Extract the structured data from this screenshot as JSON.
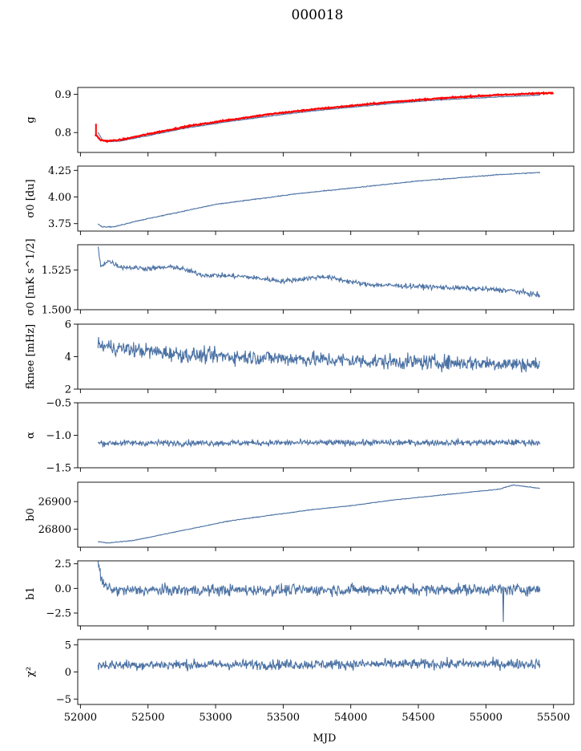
{
  "chart_data": {
    "type": "line",
    "title": "000018",
    "xlabel": "MJD",
    "xlim": [
      51980,
      55650
    ],
    "x_ticks": [
      "52000",
      "52500",
      "53000",
      "53500",
      "54000",
      "54500",
      "55000",
      "55500"
    ],
    "x_tick_values": [
      52000,
      52500,
      53000,
      53500,
      54000,
      54500,
      55000,
      55500
    ],
    "x_start": 52130,
    "x_end": 55400,
    "series_color": "#4c72a4",
    "overlay_color": "#ff0000",
    "panels": [
      {
        "id": "g",
        "ylabel": "g",
        "ylim": [
          0.748,
          0.918
        ],
        "y_ticks": [
          "0.9",
          "0.8"
        ],
        "y_tick_values": [
          0.9,
          0.8
        ],
        "series": {
          "x": [
            52130,
            52160,
            52200,
            52300,
            52500,
            52800,
            53100,
            53400,
            53700,
            54000,
            54300,
            54600,
            54900,
            55200,
            55400
          ],
          "values": [
            0.8,
            0.782,
            0.776,
            0.778,
            0.792,
            0.813,
            0.829,
            0.843,
            0.856,
            0.866,
            0.876,
            0.884,
            0.89,
            0.895,
            0.898
          ],
          "noise": 0.001
        },
        "overlay": {
          "x": [
            52110,
            52150,
            52200,
            52300,
            52500,
            52800,
            53100,
            53400,
            53700,
            54000,
            54300,
            54600,
            54900,
            55200,
            55500
          ],
          "values": [
            0.795,
            0.78,
            0.778,
            0.781,
            0.796,
            0.817,
            0.833,
            0.848,
            0.86,
            0.87,
            0.88,
            0.888,
            0.895,
            0.9,
            0.904
          ],
          "noise": 0.0015,
          "spike": {
            "x": 52115,
            "low": 0.79,
            "high": 0.823
          }
        }
      },
      {
        "id": "sigma0-du",
        "ylabel": "σ0 [du]",
        "ylim": [
          3.68,
          4.29
        ],
        "y_ticks": [
          "4.25",
          "4.00",
          "3.75"
        ],
        "y_tick_values": [
          4.25,
          4.0,
          3.75
        ],
        "series": {
          "x": [
            52130,
            52160,
            52250,
            52400,
            52700,
            53000,
            53300,
            53600,
            53900,
            54200,
            54500,
            54800,
            55100,
            55400
          ],
          "values": [
            3.75,
            3.72,
            3.72,
            3.77,
            3.85,
            3.93,
            3.98,
            4.03,
            4.07,
            4.11,
            4.15,
            4.18,
            4.21,
            4.23
          ],
          "noise": 0.004
        }
      },
      {
        "id": "sigma0-mks",
        "ylabel": "σ0 [mK s^1/2]",
        "ylim": [
          1.5,
          1.541
        ],
        "y_ticks": [
          "1.525",
          "1.500"
        ],
        "y_tick_values": [
          1.525,
          1.5
        ],
        "series": {
          "x": [
            52130,
            52150,
            52200,
            52300,
            52500,
            52700,
            52900,
            53200,
            53500,
            53800,
            54100,
            54400,
            54700,
            55000,
            55200,
            55400
          ],
          "values": [
            1.54,
            1.527,
            1.531,
            1.527,
            1.526,
            1.527,
            1.522,
            1.521,
            1.518,
            1.521,
            1.516,
            1.515,
            1.514,
            1.513,
            1.512,
            1.509
          ],
          "noise": 0.0015
        }
      },
      {
        "id": "fknee",
        "ylabel": "fknee [mHz]",
        "ylim": [
          2,
          6
        ],
        "y_ticks": [
          "6",
          "4",
          "2"
        ],
        "y_tick_values": [
          6,
          4,
          2
        ],
        "series": {
          "x": [
            52130,
            52300,
            52800,
            53500,
            54200,
            55000,
            55400
          ],
          "values": [
            4.7,
            4.5,
            4.1,
            3.9,
            3.7,
            3.6,
            3.5
          ],
          "noise": 0.45
        }
      },
      {
        "id": "alpha",
        "ylabel": "α",
        "ylim": [
          -1.5,
          -0.5
        ],
        "y_ticks": [
          "−0.5",
          "−1.0",
          "−1.5"
        ],
        "y_tick_values": [
          -0.5,
          -1.0,
          -1.5
        ],
        "series": {
          "x": [
            52130,
            55400
          ],
          "values": [
            -1.12,
            -1.11
          ],
          "noise": 0.045
        }
      },
      {
        "id": "b0",
        "ylabel": "b0",
        "ylim": [
          26735,
          26970
        ],
        "y_ticks": [
          "26900",
          "26800"
        ],
        "y_tick_values": [
          26900,
          26800
        ],
        "series": {
          "x": [
            52130,
            52200,
            52400,
            52600,
            52800,
            53100,
            53400,
            53700,
            54000,
            54300,
            54600,
            54900,
            55100,
            55200,
            55400
          ],
          "values": [
            26755,
            26750,
            26760,
            26780,
            26800,
            26830,
            26850,
            26870,
            26885,
            26905,
            26920,
            26935,
            26945,
            26960,
            26948
          ],
          "noise": 1.2
        }
      },
      {
        "id": "b1",
        "ylabel": "b1",
        "ylim": [
          -3.8,
          2.8
        ],
        "y_ticks": [
          "2.5",
          "0.0",
          "−2.5"
        ],
        "y_tick_values": [
          2.5,
          0.0,
          -2.5
        ],
        "series": {
          "x": [
            52130,
            52170,
            52250,
            55400
          ],
          "values": [
            2.4,
            0.3,
            -0.2,
            -0.1
          ],
          "noise": 0.55,
          "dip": {
            "x": 55130,
            "value": -3.4
          }
        }
      },
      {
        "id": "chi2",
        "ylabel": "χ²",
        "ylim": [
          -6,
          6
        ],
        "y_ticks": [
          "5",
          "0",
          "−5"
        ],
        "y_tick_values": [
          5,
          0,
          -5
        ],
        "series": {
          "x": [
            52130,
            55400
          ],
          "values": [
            1.3,
            1.5
          ],
          "noise": 0.9
        }
      }
    ]
  }
}
